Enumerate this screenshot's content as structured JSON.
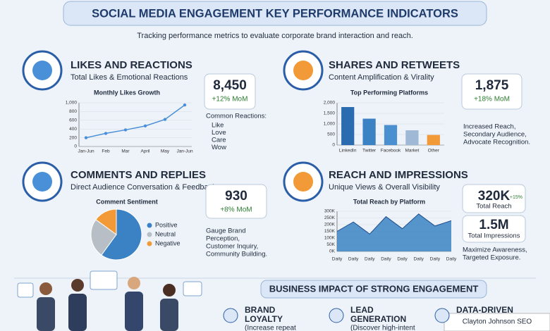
{
  "header": {
    "title": "SOCIAL MEDIA ENGAGEMENT KEY PERFORMANCE INDICATORS",
    "subtitle": "Tracking performance metrics to evaluate corporate brand interaction and reach."
  },
  "panels": [
    {
      "title": "LIKES AND REACTIONS",
      "subtitle": "Total Likes & Emotional Reactions",
      "kpi": "8,450",
      "change": "+12% MoM",
      "notes_title": "Common Reactions:",
      "notes": [
        "Like",
        "Love",
        "Care",
        "Wow"
      ]
    },
    {
      "title": "SHARES AND RETWEETS",
      "subtitle": "Content Amplification & Virality",
      "kpi": "1,875",
      "change": "+18% MoM",
      "notes": [
        "Increased Reach,",
        "Secondary Audience,",
        "Advocate Recognition."
      ]
    },
    {
      "title": "COMMENTS AND REPLIES",
      "subtitle": "Direct Audience Conversation & Feedback",
      "kpi": "930",
      "change": "+8% MoM",
      "notes": [
        "Gauge Brand",
        "Perception,",
        "Customer Inquiry,",
        "Community Building."
      ]
    },
    {
      "title": "REACH AND IMPRESSIONS",
      "subtitle": "Unique Views & Overall Visibility",
      "kpi": "320K",
      "change": "+15%",
      "kpi_label": "Total Reach",
      "kpi2": "1.5M",
      "kpi2_label": "Total Impressions",
      "notes": [
        "Maximize Awareness,",
        "Targeted Exposure."
      ]
    }
  ],
  "impact": {
    "title": "BUSINESS IMPACT OF STRONG ENGAGEMENT",
    "items": [
      {
        "title": [
          "BRAND",
          "LOYALTY"
        ],
        "text": "(Increase repeat"
      },
      {
        "title": [
          "LEAD",
          "GENERATION"
        ],
        "text": "(Discover high-intent"
      },
      {
        "title": [
          "DATA-DRIVEN"
        ],
        "text": ""
      }
    ]
  },
  "watermark": "Clayton Johnson SEO",
  "chart_data": [
    {
      "type": "line",
      "title": "Monthly Likes Growth",
      "categories": [
        "Jan-Jun",
        "Feb",
        "Mar",
        "April",
        "May",
        "Jan-Jun"
      ],
      "values": [
        200,
        300,
        380,
        470,
        620,
        950
      ],
      "color": "#4a90d9",
      "ylim": [
        0,
        1000
      ],
      "yticks": [
        0,
        200,
        400,
        600,
        800,
        {
          "value": 1000,
          "label": "1,000"
        }
      ],
      "grid": true
    },
    {
      "type": "bar",
      "title": "Top Performing Platforms",
      "categories": [
        "LinkedIn",
        "Twitter",
        "Facebook",
        "Market",
        "Other"
      ],
      "values": [
        1800,
        1250,
        950,
        700,
        480
      ],
      "colors": [
        "#2b6cb0",
        "#3b82c4",
        "#4a8fcf",
        "#9fb8d6",
        "#f29a38"
      ],
      "ylim": [
        0,
        2000
      ],
      "yticks": [
        0,
        500,
        {
          "value": 1000,
          "label": "1,000"
        },
        {
          "value": 1500,
          "label": "1,500"
        },
        {
          "value": 2000,
          "label": "2,000"
        }
      ],
      "grid": true
    },
    {
      "type": "pie",
      "title": "Comment Sentiment",
      "categories": [
        "Positive",
        "Neutral",
        "Negative"
      ],
      "values": [
        60,
        25,
        15
      ],
      "colors": [
        "#3b82c4",
        "#b8bec6",
        "#f29a38"
      ]
    },
    {
      "type": "area",
      "title": "Total Reach by Platform",
      "categories": [
        "Daily",
        "Daily",
        "Daily",
        "Daily",
        "Daily",
        "Daily",
        "Daily",
        "Daily"
      ],
      "values": [
        150000,
        220000,
        130000,
        260000,
        170000,
        280000,
        190000,
        230000
      ],
      "color": "#3b82c4",
      "ylim": [
        0,
        300000
      ],
      "yticks": [
        {
          "value": 0,
          "label": "0K"
        },
        {
          "value": 50000,
          "label": "50K"
        },
        {
          "value": 100000,
          "label": "100K"
        },
        {
          "value": 150000,
          "label": "150K"
        },
        {
          "value": 200000,
          "label": "200K"
        },
        {
          "value": 250000,
          "label": "250K"
        },
        {
          "value": 300000,
          "label": "300K"
        }
      ],
      "grid": true
    }
  ]
}
